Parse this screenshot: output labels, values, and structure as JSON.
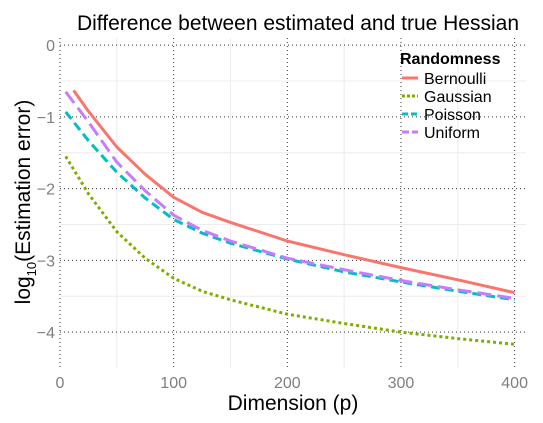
{
  "chart_data": {
    "type": "line",
    "title": "Difference between estimated and true Hessian",
    "xlabel": "Dimension (p)",
    "ylabel_main": "log",
    "ylabel_sub": "10",
    "ylabel_rest": "(Estimation error)",
    "xlim": [
      0,
      410
    ],
    "ylim": [
      -4.5,
      0.1
    ],
    "x_ticks": [
      0,
      100,
      200,
      300,
      400
    ],
    "y_ticks": [
      0,
      -1,
      -2,
      -3,
      -4
    ],
    "x_tick_labels": [
      "0",
      "100",
      "200",
      "300",
      "400"
    ],
    "y_tick_labels": [
      "0",
      "−1",
      "−2",
      "−3",
      "−4"
    ],
    "grid": true,
    "legend_position": "top-right",
    "legend_title": "Randomness",
    "series": [
      {
        "name": "Bernoulli",
        "color": "#F8766D",
        "dash": "solid",
        "x": [
          12,
          25,
          50,
          75,
          100,
          125,
          150,
          200,
          250,
          300,
          350,
          400
        ],
        "y": [
          -0.63,
          -0.92,
          -1.42,
          -1.8,
          -2.12,
          -2.33,
          -2.47,
          -2.73,
          -2.92,
          -3.1,
          -3.27,
          -3.45
        ]
      },
      {
        "name": "Gaussian",
        "color": "#7CAE00",
        "dash": "dotted",
        "x": [
          5,
          25,
          50,
          75,
          100,
          125,
          150,
          200,
          250,
          300,
          350,
          400
        ],
        "y": [
          -1.55,
          -2.07,
          -2.6,
          -2.97,
          -3.25,
          -3.43,
          -3.55,
          -3.75,
          -3.88,
          -4.0,
          -4.09,
          -4.17
        ]
      },
      {
        "name": "Poisson",
        "color": "#00BFC4",
        "dash": "dashed",
        "x": [
          5,
          25,
          50,
          75,
          100,
          125,
          150,
          200,
          250,
          300,
          350,
          400
        ],
        "y": [
          -0.93,
          -1.33,
          -1.77,
          -2.13,
          -2.43,
          -2.62,
          -2.76,
          -2.98,
          -3.16,
          -3.3,
          -3.43,
          -3.55
        ]
      },
      {
        "name": "Uniform",
        "color": "#C77CFF",
        "dash": "longdash",
        "x": [
          5,
          25,
          50,
          75,
          100,
          125,
          150,
          200,
          250,
          300,
          350,
          400
        ],
        "y": [
          -0.65,
          -1.07,
          -1.63,
          -2.03,
          -2.37,
          -2.58,
          -2.73,
          -2.97,
          -3.13,
          -3.28,
          -3.41,
          -3.53
        ]
      }
    ]
  }
}
